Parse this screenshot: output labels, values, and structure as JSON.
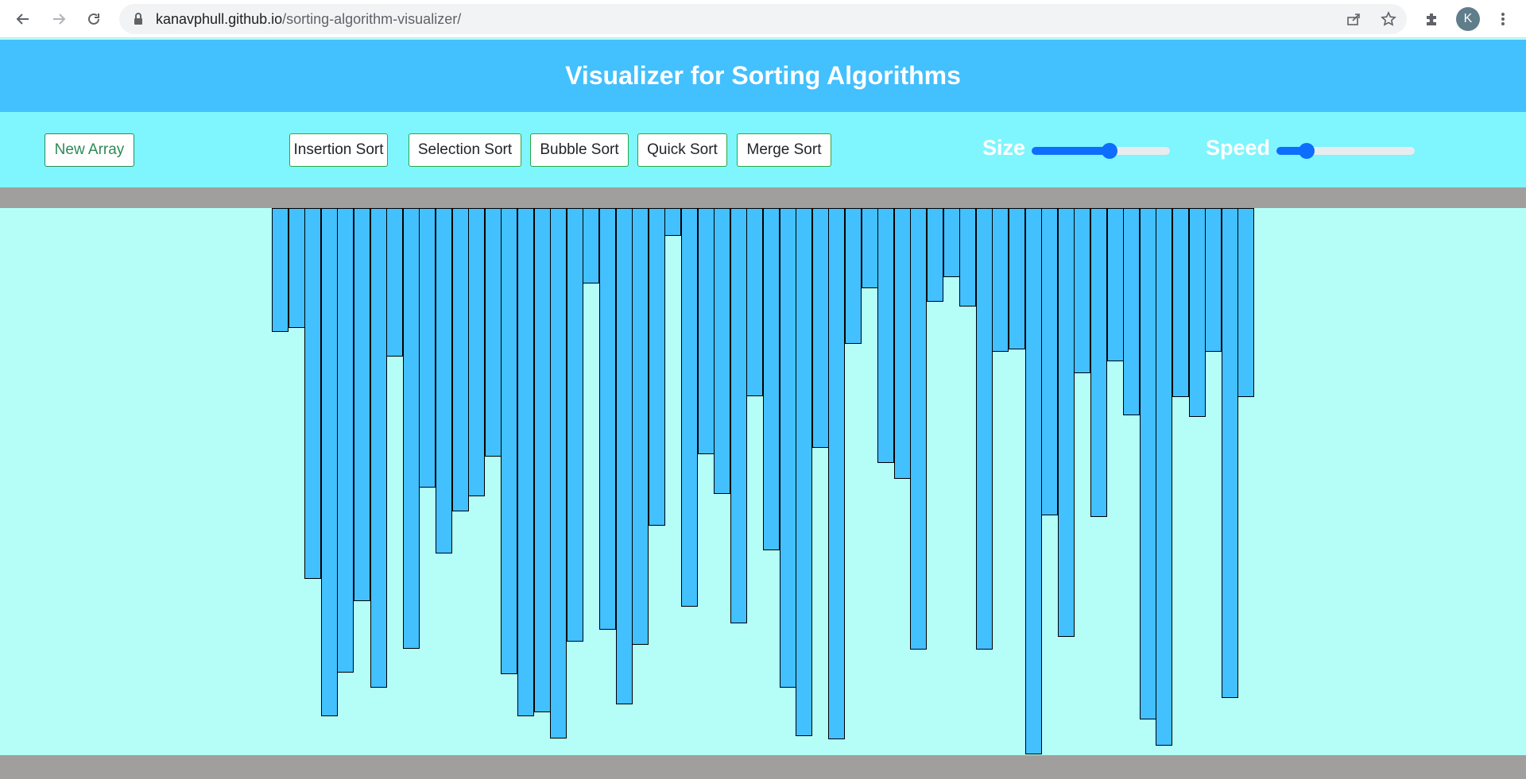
{
  "browser": {
    "url_domain": "kanavphull.github.io",
    "url_path": "/sorting-algorithm-visualizer/",
    "profile_initial": "K"
  },
  "header": {
    "title": "Visualizer for Sorting Algorithms"
  },
  "toolbar": {
    "new_array_label": "New Array",
    "algorithms": [
      "Insertion Sort",
      "Selection Sort",
      "Bubble Sort",
      "Quick Sort",
      "Merge Sort"
    ],
    "size_label": "Size",
    "speed_label": "Speed",
    "size_value": 0.57,
    "speed_value": 0.18
  },
  "colors": {
    "bar": "#43c0fe",
    "header": "#43c0fe",
    "toolbar": "#7ff5fe",
    "canvas": "#b5fef8",
    "strip": "#a19f9d"
  },
  "chart_data": {
    "type": "bar",
    "values": [
      156,
      151,
      467,
      640,
      585,
      495,
      604,
      187,
      555,
      352,
      435,
      382,
      363,
      313,
      587,
      640,
      635,
      668,
      546,
      95,
      531,
      625,
      550,
      400,
      35,
      502,
      310,
      360,
      523,
      237,
      431,
      604,
      665,
      302,
      669,
      171,
      101,
      321,
      341,
      556,
      118,
      87,
      124,
      556,
      181,
      178,
      688,
      387,
      540,
      208,
      389,
      193,
      261,
      644,
      677,
      238,
      263,
      181,
      617,
      238
    ]
  }
}
